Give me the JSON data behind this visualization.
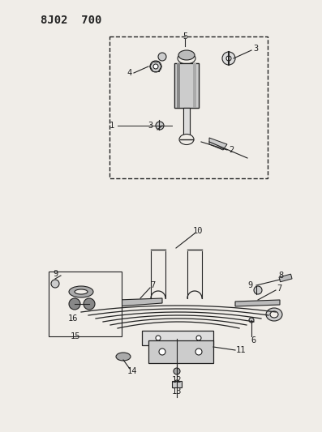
{
  "title": "8J02  700",
  "bg_color": "#f0ede8",
  "line_color": "#222222",
  "title_fontsize": 11,
  "label_fontsize": 7.5
}
